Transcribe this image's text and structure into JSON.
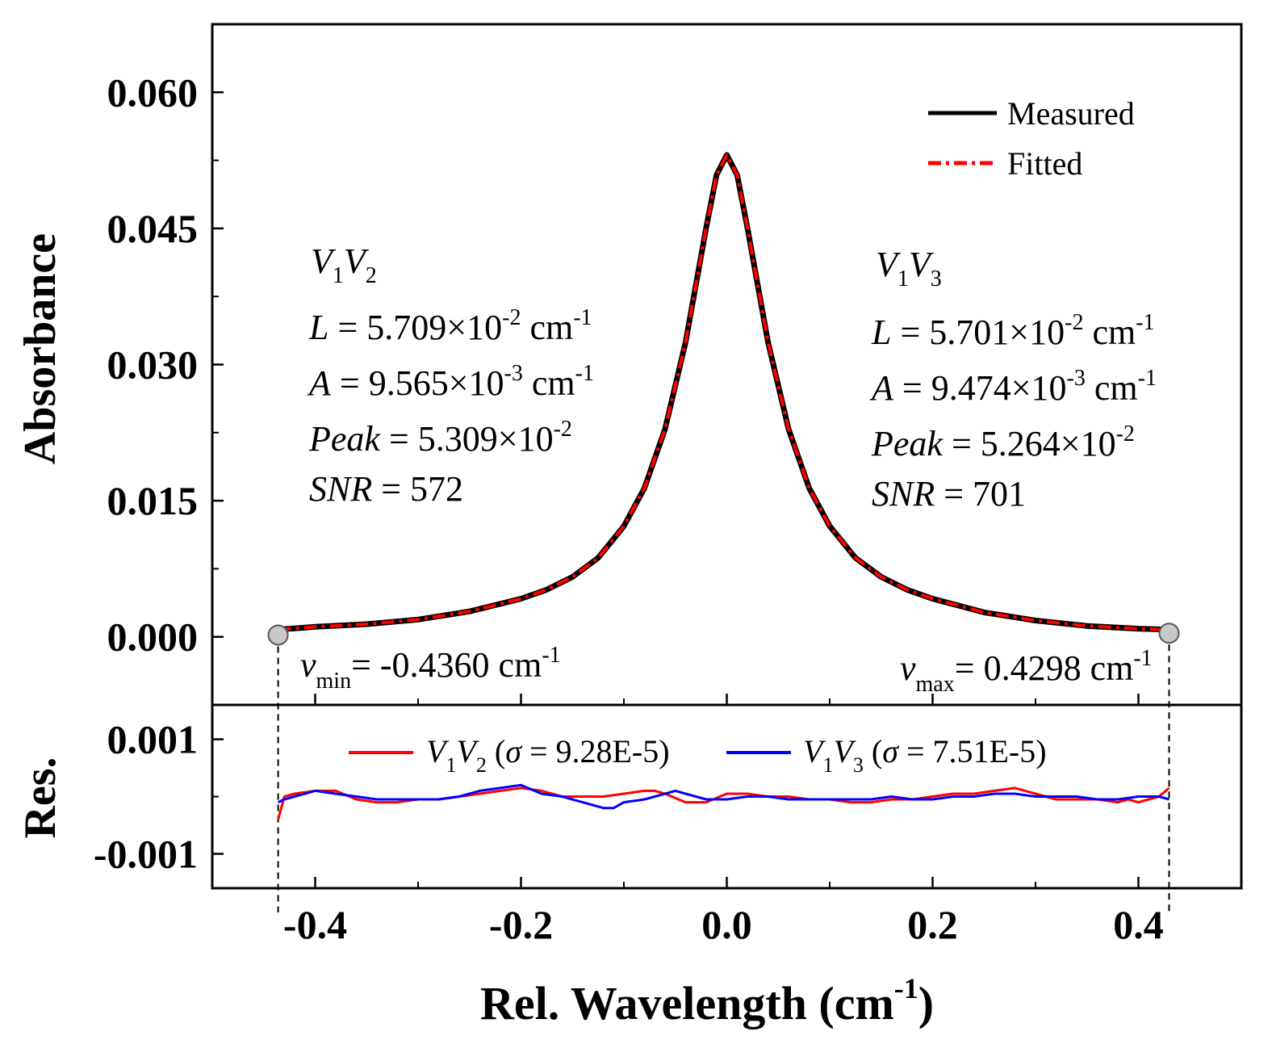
{
  "chart_data": [
    {
      "type": "line",
      "panel": "main",
      "ylabel": "Absorbance",
      "xlim": [
        -0.5,
        0.5
      ],
      "ylim": [
        -0.0075,
        0.0675
      ],
      "yticks": [
        0.0,
        0.015,
        0.03,
        0.045,
        0.06
      ],
      "ytick_labels": [
        "0.000",
        "0.015",
        "0.030",
        "0.045",
        "0.060"
      ],
      "legend": {
        "position": "top-right",
        "items": [
          {
            "label": "Measured",
            "color": "#000000",
            "style": "solid"
          },
          {
            "label": "Fitted",
            "color": "#ff0000",
            "style": "dash-dot"
          }
        ]
      },
      "series": [
        {
          "name": "Measured",
          "color": "#000000",
          "x": [
            -0.436,
            -0.4,
            -0.35,
            -0.3,
            -0.25,
            -0.2,
            -0.175,
            -0.15,
            -0.125,
            -0.1,
            -0.08,
            -0.06,
            -0.04,
            -0.02,
            -0.01,
            0.0,
            0.01,
            0.02,
            0.04,
            0.06,
            0.08,
            0.1,
            0.125,
            0.15,
            0.175,
            0.2,
            0.25,
            0.3,
            0.35,
            0.4,
            0.4298
          ],
          "y": [
            0.0008,
            0.0011,
            0.0014,
            0.0019,
            0.0028,
            0.0042,
            0.0052,
            0.0066,
            0.0087,
            0.0122,
            0.0164,
            0.0229,
            0.0325,
            0.0451,
            0.0509,
            0.0531,
            0.0509,
            0.0451,
            0.0325,
            0.0229,
            0.0164,
            0.0122,
            0.0087,
            0.0066,
            0.0052,
            0.0042,
            0.0027,
            0.0018,
            0.0012,
            0.0009,
            0.0008
          ]
        },
        {
          "name": "Fitted",
          "color": "#ff0000",
          "x": [
            -0.436,
            -0.4,
            -0.35,
            -0.3,
            -0.25,
            -0.2,
            -0.175,
            -0.15,
            -0.125,
            -0.1,
            -0.08,
            -0.06,
            -0.04,
            -0.02,
            -0.01,
            0.0,
            0.01,
            0.02,
            0.04,
            0.06,
            0.08,
            0.1,
            0.125,
            0.15,
            0.175,
            0.2,
            0.25,
            0.3,
            0.35,
            0.4,
            0.4298
          ],
          "y": [
            0.0008,
            0.0011,
            0.0014,
            0.0019,
            0.0028,
            0.0042,
            0.0052,
            0.0066,
            0.0087,
            0.0122,
            0.0164,
            0.0229,
            0.0325,
            0.0451,
            0.0509,
            0.0531,
            0.0509,
            0.0451,
            0.0325,
            0.0229,
            0.0164,
            0.0122,
            0.0087,
            0.0066,
            0.0052,
            0.0042,
            0.0027,
            0.0018,
            0.0012,
            0.0009,
            0.0008
          ]
        }
      ],
      "markers": [
        {
          "name": "nu-min",
          "x": -0.436,
          "y": 0.0002
        },
        {
          "name": "nu-max",
          "x": 0.4298,
          "y": 0.0004
        }
      ],
      "annotations": {
        "left": {
          "title_v1": "V",
          "title_sub1": "1",
          "title_v2": "V",
          "title_sub2": "2",
          "l_lhs": "L",
          "l_eq": " = 5.709×10",
          "l_exp": "-2",
          "l_unit": " cm",
          "l_unit_exp": "-1",
          "a_lhs": "A",
          "a_eq": " = 9.565×10",
          "a_exp": "-3",
          "a_unit": " cm",
          "a_unit_exp": "-1",
          "peak_lhs": "Peak",
          "peak_eq": " = 5.309×10",
          "peak_exp": "-2",
          "snr_lhs": "SNR",
          "snr_eq": " = 572"
        },
        "right": {
          "title_v1": "V",
          "title_sub1": "1",
          "title_v2": "V",
          "title_sub2": "3",
          "l_lhs": "L",
          "l_eq": " = 5.701×10",
          "l_exp": "-2",
          "l_unit": " cm",
          "l_unit_exp": "-1",
          "a_lhs": "A",
          "a_eq": " = 9.474×10",
          "a_exp": "-3",
          "a_unit": " cm",
          "a_unit_exp": "-1",
          "peak_lhs": "Peak",
          "peak_eq": " = 5.264×10",
          "peak_exp": "-2",
          "snr_lhs": "SNR",
          "snr_eq": " = 701"
        },
        "nu_min": {
          "sym": "v",
          "sub": "min",
          "eq": "= -0.4360 cm",
          "exp": "-1"
        },
        "nu_max": {
          "sym": "v",
          "sub": "max",
          "eq": "= 0.4298 cm",
          "exp": "-1"
        }
      }
    },
    {
      "type": "line",
      "panel": "residual",
      "ylabel": "Res.",
      "xlabel_main": "Rel. Wavelength (cm",
      "xlabel_exp": "-1",
      "xlabel_close": ")",
      "xlim": [
        -0.5,
        0.5
      ],
      "ylim": [
        -0.0016,
        0.0016
      ],
      "xticks": [
        -0.4,
        -0.2,
        0.0,
        0.2,
        0.4
      ],
      "xtick_labels": [
        "-0.4",
        "-0.2",
        "0.0",
        "0.2",
        "0.4"
      ],
      "yticks": [
        -0.001,
        0.001
      ],
      "ytick_labels": [
        "-0.001",
        "0.001"
      ],
      "legend": {
        "position": "top",
        "items": [
          {
            "v1": "V",
            "s1": "1",
            "v2": "V",
            "s2": "2",
            "open": " (",
            "sigma": "σ",
            "val": " = 9.28E-5)",
            "color": "#ff0000"
          },
          {
            "v1": "V",
            "s1": "1",
            "v2": "V",
            "s2": "3",
            "open": " (",
            "sigma": "σ",
            "val": " = 7.51E-5)",
            "color": "#0000ff"
          }
        ]
      },
      "series": [
        {
          "name": "V1V2",
          "color": "#ff0000",
          "x": [
            -0.436,
            -0.43,
            -0.42,
            -0.4,
            -0.38,
            -0.36,
            -0.34,
            -0.32,
            -0.3,
            -0.28,
            -0.26,
            -0.24,
            -0.22,
            -0.2,
            -0.18,
            -0.16,
            -0.14,
            -0.12,
            -0.1,
            -0.08,
            -0.07,
            -0.06,
            -0.04,
            -0.02,
            0.0,
            0.02,
            0.04,
            0.06,
            0.08,
            0.1,
            0.12,
            0.14,
            0.16,
            0.18,
            0.2,
            0.22,
            0.24,
            0.26,
            0.28,
            0.3,
            0.32,
            0.34,
            0.36,
            0.38,
            0.39,
            0.4,
            0.41,
            0.42,
            0.4298
          ],
          "y": [
            -0.0004,
            0.0,
            5e-05,
            0.0001,
            0.0001,
            -5e-05,
            -0.0001,
            -0.0001,
            -5e-05,
            -5e-05,
            0.0,
            5e-05,
            0.0001,
            0.00015,
            0.0001,
            0.0,
            0.0,
            0.0,
            5e-05,
            0.0001,
            0.0001,
            5e-05,
            -0.0001,
            -0.0001,
            5e-05,
            5e-05,
            0.0,
            0.0,
            -5e-05,
            -5e-05,
            -0.0001,
            -0.0001,
            -5e-05,
            -5e-05,
            0.0,
            5e-05,
            5e-05,
            0.0001,
            0.00015,
            5e-05,
            -5e-05,
            -5e-05,
            -5e-05,
            -0.0001,
            -5e-05,
            -0.0001,
            -5e-05,
            0.0,
            0.00015
          ]
        },
        {
          "name": "V1V3",
          "color": "#0000ff",
          "x": [
            -0.436,
            -0.43,
            -0.42,
            -0.4,
            -0.38,
            -0.36,
            -0.34,
            -0.32,
            -0.3,
            -0.28,
            -0.26,
            -0.24,
            -0.22,
            -0.2,
            -0.18,
            -0.16,
            -0.14,
            -0.12,
            -0.11,
            -0.1,
            -0.08,
            -0.06,
            -0.05,
            -0.04,
            -0.02,
            0.0,
            0.02,
            0.04,
            0.06,
            0.08,
            0.1,
            0.12,
            0.14,
            0.16,
            0.18,
            0.2,
            0.22,
            0.24,
            0.26,
            0.28,
            0.3,
            0.32,
            0.34,
            0.36,
            0.38,
            0.4,
            0.42,
            0.4298
          ],
          "y": [
            -0.0001,
            -5e-05,
            0.0,
            0.0001,
            5e-05,
            0.0,
            -5e-05,
            -5e-05,
            -5e-05,
            -5e-05,
            0.0,
            0.0001,
            0.00015,
            0.0002,
            5e-05,
            0.0,
            -0.0001,
            -0.0002,
            -0.0002,
            -0.0001,
            -5e-05,
            5e-05,
            0.0001,
            5e-05,
            -5e-05,
            -5e-05,
            0.0,
            0.0,
            -5e-05,
            -5e-05,
            -5e-05,
            -5e-05,
            -5e-05,
            0.0,
            -5e-05,
            -5e-05,
            0.0,
            0.0,
            5e-05,
            5e-05,
            0.0,
            0.0,
            0.0,
            -5e-05,
            -5e-05,
            0.0,
            0.0,
            -5e-05
          ]
        }
      ]
    }
  ]
}
